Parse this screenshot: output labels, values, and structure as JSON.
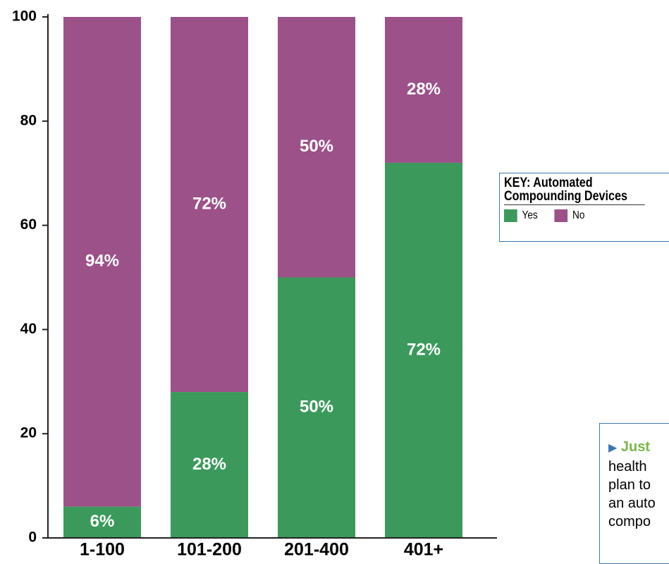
{
  "chart_data": {
    "type": "stacked_bar",
    "categories": [
      "1-100",
      "101-200",
      "201-400",
      "401+"
    ],
    "series": [
      {
        "name": "Yes",
        "color": "#3b9a5b",
        "values": [
          6,
          28,
          50,
          72
        ],
        "value_labels": [
          "6%",
          "28%",
          "50%",
          "72%"
        ]
      },
      {
        "name": "No",
        "color": "#9c5189",
        "values": [
          94,
          72,
          50,
          28
        ],
        "value_labels": [
          "94%",
          "72%",
          "50%",
          "28%"
        ]
      }
    ],
    "ylim": [
      0,
      100
    ],
    "yticks": [
      0,
      20,
      40,
      60,
      80,
      100
    ],
    "legend_title": "KEY: Automated Compounding Devices",
    "annotation": {
      "lead": "Just",
      "lines": [
        "health",
        "plan to",
        "an auto",
        "compo"
      ]
    }
  }
}
